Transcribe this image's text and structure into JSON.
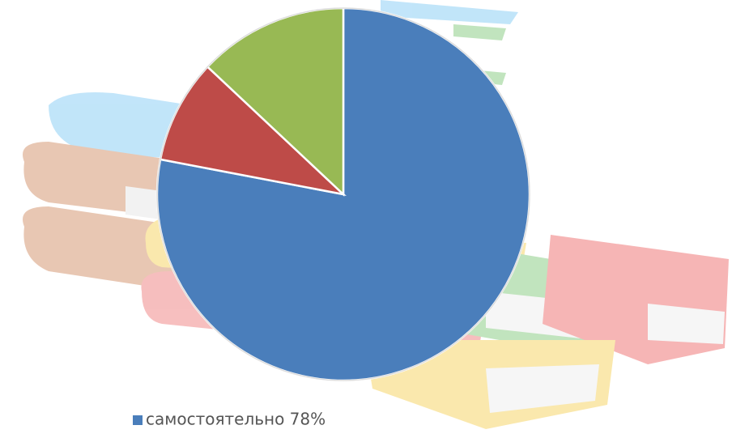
{
  "chart_data": {
    "type": "pie",
    "categories": [
      "самостоятельно 78%",
      null,
      null
    ],
    "values": [
      78,
      9,
      13
    ],
    "colors": [
      "#4a7ebb",
      "#be4b48",
      "#98b954"
    ],
    "start_angle": 0,
    "direction": "clockwise",
    "legend": "bottom"
  }
}
